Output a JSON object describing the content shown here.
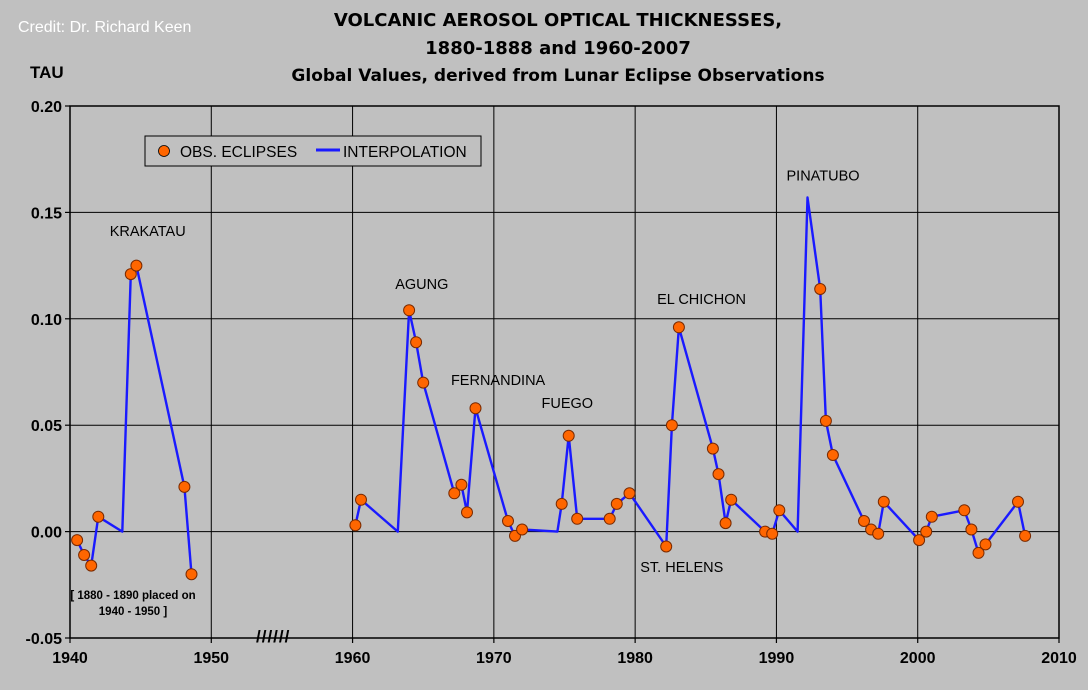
{
  "credit": "Credit: Dr. Richard Keen",
  "title_line1": "VOLCANIC AEROSOL OPTICAL THICKNESSES,",
  "title_line2": "1880-1888 and 1960-2007",
  "subtitle": "Global Values, derived from Lunar Eclipse Observations",
  "chart_data": {
    "type": "scatter",
    "ylabel": "TAU",
    "xlim": [
      1940,
      2010
    ],
    "ylim": [
      -0.05,
      0.2
    ],
    "x_ticks": [
      1940,
      1950,
      1960,
      1970,
      1980,
      1990,
      2000,
      2010
    ],
    "y_ticks": [
      "0.20",
      "0.15",
      "0.10",
      "0.05",
      "0.00",
      "-0.05"
    ],
    "y_tick_values": [
      0.2,
      0.15,
      0.1,
      0.05,
      0.0,
      -0.05
    ],
    "grid": true,
    "legend_position": "top-left",
    "legend": [
      "OBS. ECLIPSES",
      "INTERPOLATION"
    ],
    "axis_break_marks": "//////",
    "note": "[ 1880 - 1890 placed on 1940 - 1950 ]",
    "colors": {
      "points": "#ff6600",
      "line": "#1a1aff"
    },
    "series": [
      {
        "name": "OBS. ECLIPSES",
        "points": [
          [
            1940.5,
            -0.004
          ],
          [
            1941.0,
            -0.011
          ],
          [
            1941.5,
            -0.016
          ],
          [
            1942.0,
            0.007
          ],
          [
            1944.3,
            0.121
          ],
          [
            1944.7,
            0.125
          ],
          [
            1948.1,
            0.021
          ],
          [
            1948.6,
            -0.02
          ],
          [
            1960.2,
            0.003
          ],
          [
            1960.6,
            0.015
          ],
          [
            1964.0,
            0.104
          ],
          [
            1964.5,
            0.089
          ],
          [
            1965.0,
            0.07
          ],
          [
            1967.2,
            0.018
          ],
          [
            1967.7,
            0.022
          ],
          [
            1968.1,
            0.009
          ],
          [
            1968.7,
            0.058
          ],
          [
            1971.0,
            0.005
          ],
          [
            1971.5,
            -0.002
          ],
          [
            1972.0,
            0.001
          ],
          [
            1974.8,
            0.013
          ],
          [
            1975.3,
            0.045
          ],
          [
            1975.9,
            0.006
          ],
          [
            1978.2,
            0.006
          ],
          [
            1978.7,
            0.013
          ],
          [
            1979.6,
            0.018
          ],
          [
            1982.2,
            -0.007
          ],
          [
            1982.6,
            0.05
          ],
          [
            1983.1,
            0.096
          ],
          [
            1985.5,
            0.039
          ],
          [
            1985.9,
            0.027
          ],
          [
            1986.4,
            0.004
          ],
          [
            1986.8,
            0.015
          ],
          [
            1989.2,
            0.0
          ],
          [
            1989.7,
            -0.001
          ],
          [
            1990.2,
            0.01
          ],
          [
            1993.1,
            0.114
          ],
          [
            1993.5,
            0.052
          ],
          [
            1994.0,
            0.036
          ],
          [
            1996.2,
            0.005
          ],
          [
            1996.7,
            0.001
          ],
          [
            1997.2,
            -0.001
          ],
          [
            1997.6,
            0.014
          ],
          [
            2000.1,
            -0.004
          ],
          [
            2000.6,
            0.0
          ],
          [
            2001.0,
            0.007
          ],
          [
            2003.3,
            0.01
          ],
          [
            2003.8,
            0.001
          ],
          [
            2004.3,
            -0.01
          ],
          [
            2004.8,
            -0.006
          ],
          [
            2007.1,
            0.014
          ],
          [
            2007.6,
            -0.002
          ]
        ]
      },
      {
        "name": "INTERPOLATION",
        "segments": [
          [
            [
              1940.5,
              -0.004
            ],
            [
              1941.0,
              -0.011
            ],
            [
              1941.5,
              -0.016
            ],
            [
              1942.0,
              0.007
            ],
            [
              1943.7,
              0.0
            ],
            [
              1944.3,
              0.121
            ],
            [
              1944.7,
              0.125
            ],
            [
              1948.1,
              0.021
            ],
            [
              1948.6,
              -0.02
            ]
          ],
          [
            [
              1960.2,
              0.003
            ],
            [
              1960.6,
              0.015
            ],
            [
              1963.2,
              0.0
            ],
            [
              1964.0,
              0.104
            ],
            [
              1964.5,
              0.089
            ],
            [
              1965.0,
              0.07
            ],
            [
              1967.2,
              0.018
            ],
            [
              1967.7,
              0.022
            ],
            [
              1968.1,
              0.009
            ],
            [
              1968.7,
              0.058
            ],
            [
              1971.0,
              0.005
            ],
            [
              1971.5,
              -0.002
            ],
            [
              1972.0,
              0.001
            ],
            [
              1974.5,
              0.0
            ],
            [
              1974.8,
              0.013
            ],
            [
              1975.3,
              0.045
            ],
            [
              1975.9,
              0.006
            ],
            [
              1978.2,
              0.006
            ],
            [
              1978.7,
              0.013
            ],
            [
              1979.6,
              0.018
            ],
            [
              1982.2,
              -0.007
            ],
            [
              1982.6,
              0.05
            ],
            [
              1983.1,
              0.096
            ],
            [
              1985.5,
              0.039
            ],
            [
              1985.9,
              0.027
            ],
            [
              1986.4,
              0.004
            ],
            [
              1986.8,
              0.015
            ],
            [
              1989.2,
              0.0
            ],
            [
              1989.7,
              -0.001
            ],
            [
              1990.2,
              0.01
            ],
            [
              1991.5,
              0.0
            ],
            [
              1992.2,
              0.157
            ],
            [
              1993.1,
              0.114
            ],
            [
              1993.5,
              0.052
            ],
            [
              1994.0,
              0.036
            ],
            [
              1996.2,
              0.005
            ],
            [
              1996.7,
              0.001
            ],
            [
              1997.2,
              -0.001
            ],
            [
              1997.6,
              0.014
            ],
            [
              2000.1,
              -0.004
            ],
            [
              2000.6,
              0.0
            ],
            [
              2001.0,
              0.007
            ],
            [
              2003.3,
              0.01
            ],
            [
              2003.8,
              0.001
            ],
            [
              2004.3,
              -0.01
            ],
            [
              2004.8,
              -0.006
            ],
            [
              2007.1,
              0.014
            ],
            [
              2007.6,
              -0.002
            ]
          ]
        ]
      }
    ],
    "annotations": [
      {
        "text": "KRAKATAU",
        "x": 1945.5,
        "y": 0.139
      },
      {
        "text": "AGUNG",
        "x": 1964.9,
        "y": 0.114
      },
      {
        "text": "FERNANDINA",
        "x": 1970.3,
        "y": 0.069
      },
      {
        "text": "FUEGO",
        "x": 1975.2,
        "y": 0.058
      },
      {
        "text": "EL CHICHON",
        "x": 1984.7,
        "y": 0.107
      },
      {
        "text": "ST. HELENS",
        "x": 1983.3,
        "y": -0.019
      },
      {
        "text": "PINATUBO",
        "x": 1993.3,
        "y": 0.165
      }
    ]
  }
}
